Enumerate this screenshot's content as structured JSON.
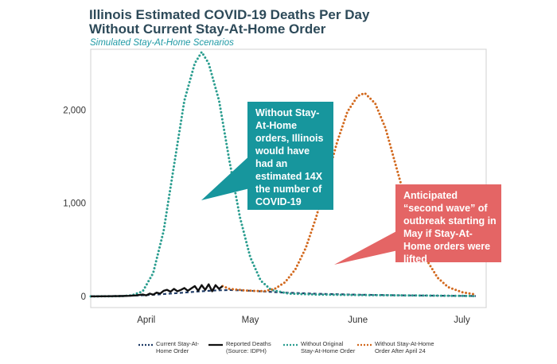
{
  "title_line1": "Illinois Estimated COVID-19 Deaths Per Day",
  "title_line2": "Without Current Stay-At-Home Order",
  "subtitle": "Simulated Stay-At-Home Scenarios",
  "callouts": {
    "teal": "Without Stay-At-Home orders, Illinois would have had an estimated 14X the number of COVID-19 deaths",
    "red": "Anticipated “second wave” of outbreak starting in May if Stay-At-Home orders were lifted"
  },
  "colors": {
    "current_order": "#1f3b66",
    "reported": "#111111",
    "without_original": "#2a9d8f",
    "without_after_april24": "#d2691e",
    "teal_box": "#17969d",
    "red_box": "#e46565"
  },
  "legend": [
    {
      "line1": "Current Stay-At-",
      "line2": "Home Order",
      "style": "dotted",
      "color_key": "current_order"
    },
    {
      "line1": "Reported Deaths",
      "line2": "(Source: IDPH)",
      "style": "solid",
      "color_key": "reported"
    },
    {
      "line1": "Without Original",
      "line2": "Stay-At-Home Order",
      "style": "dotted",
      "color_key": "without_original"
    },
    {
      "line1": "Without Stay-At-Home",
      "line2": "Order After April 24",
      "style": "dotted",
      "color_key": "without_after_april24"
    }
  ],
  "chart_data": {
    "type": "line",
    "x_ticks": [
      "April",
      "May",
      "June",
      "July"
    ],
    "x_tick_dates": [
      "2020-04-01",
      "2020-05-01",
      "2020-06-01",
      "2020-07-01"
    ],
    "xlim": [
      "2020-03-16",
      "2020-07-08"
    ],
    "y_ticks": [
      0,
      1000,
      2000
    ],
    "y_tick_labels": [
      "0",
      "1,000",
      "2,000"
    ],
    "ylim": [
      -120,
      2650
    ],
    "grid": false,
    "legend_position": "bottom",
    "series": [
      {
        "name": "Current Stay-At-Home Order",
        "style": "dotted",
        "points": [
          [
            "2020-03-16",
            2
          ],
          [
            "2020-03-20",
            3
          ],
          [
            "2020-03-25",
            5
          ],
          [
            "2020-03-30",
            10
          ],
          [
            "2020-04-05",
            22
          ],
          [
            "2020-04-10",
            35
          ],
          [
            "2020-04-15",
            50
          ],
          [
            "2020-04-20",
            62
          ],
          [
            "2020-04-25",
            68
          ],
          [
            "2020-04-30",
            62
          ],
          [
            "2020-05-05",
            52
          ],
          [
            "2020-05-10",
            42
          ],
          [
            "2020-05-20",
            28
          ],
          [
            "2020-06-01",
            18
          ],
          [
            "2020-06-15",
            10
          ],
          [
            "2020-07-01",
            5
          ],
          [
            "2020-07-05",
            4
          ]
        ]
      },
      {
        "name": "Reported Deaths (Source: IDPH)",
        "style": "solid",
        "points": [
          [
            "2020-03-16",
            0
          ],
          [
            "2020-03-19",
            1
          ],
          [
            "2020-03-22",
            2
          ],
          [
            "2020-03-25",
            4
          ],
          [
            "2020-03-27",
            6
          ],
          [
            "2020-03-29",
            10
          ],
          [
            "2020-03-31",
            20
          ],
          [
            "2020-04-01",
            10
          ],
          [
            "2020-04-02",
            30
          ],
          [
            "2020-04-03",
            18
          ],
          [
            "2020-04-04",
            40
          ],
          [
            "2020-04-05",
            30
          ],
          [
            "2020-04-06",
            60
          ],
          [
            "2020-04-07",
            70
          ],
          [
            "2020-04-08",
            50
          ],
          [
            "2020-04-09",
            80
          ],
          [
            "2020-04-10",
            55
          ],
          [
            "2020-04-11",
            70
          ],
          [
            "2020-04-12",
            90
          ],
          [
            "2020-04-13",
            60
          ],
          [
            "2020-04-14",
            85
          ],
          [
            "2020-04-15",
            110
          ],
          [
            "2020-04-16",
            60
          ],
          [
            "2020-04-17",
            120
          ],
          [
            "2020-04-18",
            70
          ],
          [
            "2020-04-19",
            130
          ],
          [
            "2020-04-20",
            55
          ],
          [
            "2020-04-21",
            120
          ],
          [
            "2020-04-22",
            80
          ],
          [
            "2020-04-23",
            110
          ]
        ]
      },
      {
        "name": "Without Original Stay-At-Home Order",
        "style": "dotted",
        "points": [
          [
            "2020-03-16",
            0
          ],
          [
            "2020-03-25",
            3
          ],
          [
            "2020-03-28",
            12
          ],
          [
            "2020-03-31",
            55
          ],
          [
            "2020-04-03",
            250
          ],
          [
            "2020-04-06",
            700
          ],
          [
            "2020-04-09",
            1400
          ],
          [
            "2020-04-12",
            2100
          ],
          [
            "2020-04-15",
            2500
          ],
          [
            "2020-04-17",
            2620
          ],
          [
            "2020-04-19",
            2500
          ],
          [
            "2020-04-22",
            2100
          ],
          [
            "2020-04-25",
            1450
          ],
          [
            "2020-04-28",
            850
          ],
          [
            "2020-05-01",
            420
          ],
          [
            "2020-05-04",
            170
          ],
          [
            "2020-05-07",
            70
          ],
          [
            "2020-05-12",
            30
          ],
          [
            "2020-05-20",
            20
          ],
          [
            "2020-06-01",
            15
          ],
          [
            "2020-06-15",
            10
          ],
          [
            "2020-07-01",
            5
          ],
          [
            "2020-07-05",
            4
          ]
        ]
      },
      {
        "name": "Without Stay-At-Home Order After April 24",
        "style": "dotted",
        "points": [
          [
            "2020-04-23",
            110
          ],
          [
            "2020-04-25",
            80
          ],
          [
            "2020-04-30",
            62
          ],
          [
            "2020-05-05",
            56
          ],
          [
            "2020-05-08",
            80
          ],
          [
            "2020-05-11",
            150
          ],
          [
            "2020-05-14",
            290
          ],
          [
            "2020-05-17",
            520
          ],
          [
            "2020-05-20",
            850
          ],
          [
            "2020-05-23",
            1250
          ],
          [
            "2020-05-26",
            1650
          ],
          [
            "2020-05-29",
            1980
          ],
          [
            "2020-06-01",
            2150
          ],
          [
            "2020-06-03",
            2180
          ],
          [
            "2020-06-06",
            2070
          ],
          [
            "2020-06-09",
            1800
          ],
          [
            "2020-06-12",
            1400
          ],
          [
            "2020-06-15",
            1000
          ],
          [
            "2020-06-18",
            640
          ],
          [
            "2020-06-21",
            380
          ],
          [
            "2020-06-24",
            200
          ],
          [
            "2020-06-27",
            100
          ],
          [
            "2020-07-01",
            45
          ],
          [
            "2020-07-05",
            20
          ]
        ]
      }
    ]
  }
}
